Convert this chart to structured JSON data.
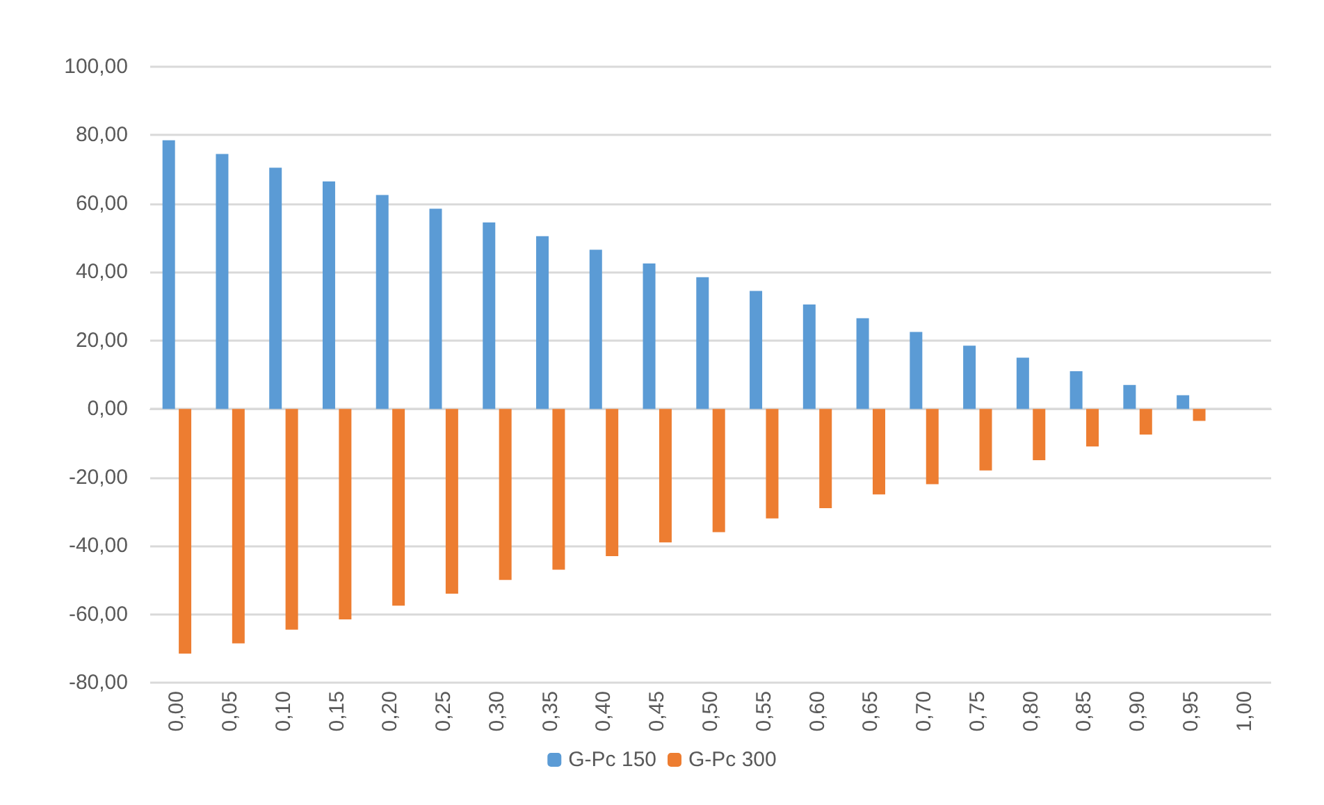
{
  "chart_data": {
    "type": "bar",
    "categories": [
      "0,00",
      "0,05",
      "0,10",
      "0,15",
      "0,20",
      "0,25",
      "0,30",
      "0,35",
      "0,40",
      "0,45",
      "0,50",
      "0,55",
      "0,60",
      "0,65",
      "0,70",
      "0,75",
      "0,80",
      "0,85",
      "0,90",
      "0,95",
      "1,00"
    ],
    "series": [
      {
        "name": "G-Pc 150",
        "color": "#5b9bd5",
        "values": [
          78.5,
          74.5,
          70.5,
          66.5,
          62.5,
          58.5,
          54.5,
          50.5,
          46.5,
          42.5,
          38.5,
          34.5,
          30.5,
          26.5,
          22.5,
          18.5,
          15,
          11,
          7,
          4,
          0
        ]
      },
      {
        "name": "G-Pc 300",
        "color": "#ed7d31",
        "values": [
          -71.5,
          -68.5,
          -64.5,
          -61.5,
          -57.5,
          -54,
          -50,
          -47,
          -43,
          -39,
          -36,
          -32,
          -29,
          -25,
          -22,
          -18,
          -15,
          -11,
          -7.5,
          -3.5,
          0
        ]
      }
    ],
    "ylim": [
      -80,
      100
    ],
    "yticks": [
      {
        "value": -80,
        "label": "-80,00"
      },
      {
        "value": -60,
        "label": "-60,00"
      },
      {
        "value": -40,
        "label": "-40,00"
      },
      {
        "value": -20,
        "label": "-20,00"
      },
      {
        "value": 0,
        "label": "0,00"
      },
      {
        "value": 20,
        "label": "20,00"
      },
      {
        "value": 40,
        "label": "40,00"
      },
      {
        "value": 60,
        "label": "60,00"
      },
      {
        "value": 80,
        "label": "80,00"
      },
      {
        "value": 100,
        "label": "100,00"
      }
    ],
    "grid": "y",
    "legend": "bottom"
  }
}
